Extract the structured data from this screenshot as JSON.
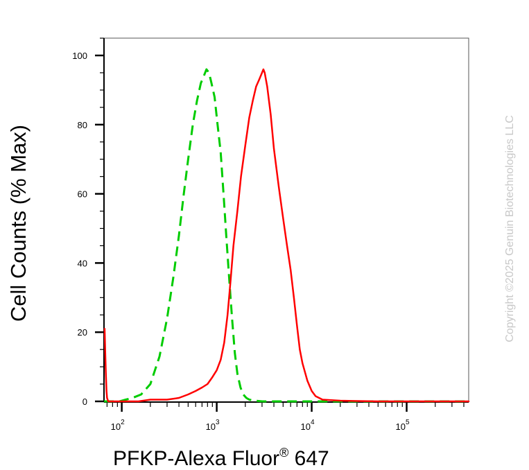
{
  "chart_data": {
    "type": "line",
    "title": "",
    "xlabel": "PFKP-Alexa Fluor",
    "xlabel_sup": "®",
    "xlabel_suffix": " 647",
    "ylabel": "Cell Counts (% Max)",
    "xscale": "log",
    "xlim": [
      65,
      450000
    ],
    "ylim": [
      0,
      105
    ],
    "y_ticks": [
      0,
      20,
      40,
      60,
      80,
      100
    ],
    "x_ticks": [
      {
        "value": 100,
        "base": "10",
        "exp": "2"
      },
      {
        "value": 1000,
        "base": "10",
        "exp": "3"
      },
      {
        "value": 10000,
        "base": "10",
        "exp": "4"
      },
      {
        "value": 100000,
        "base": "10",
        "exp": "5"
      }
    ],
    "grid": false,
    "series": [
      {
        "color": "#00cc00",
        "style": "dashed",
        "x": [
          65,
          75,
          95,
          110,
          130,
          160,
          200,
          250,
          300,
          350,
          400,
          450,
          500,
          560,
          620,
          680,
          730,
          780,
          830,
          880,
          950,
          1020,
          1100,
          1180,
          1260,
          1350,
          1450,
          1550,
          1650,
          1780,
          1900,
          2050,
          2200,
          2500,
          3000,
          5000,
          10000,
          50000,
          450000
        ],
        "y": [
          0,
          0,
          0,
          0.5,
          1,
          2,
          5,
          13,
          24,
          36,
          48,
          60,
          70,
          80,
          87,
          92,
          94,
          96,
          95,
          92,
          88,
          80,
          72,
          60,
          48,
          36,
          24,
          14,
          8,
          4,
          2,
          1,
          0.5,
          0.2,
          0,
          0,
          0,
          0,
          0
        ]
      },
      {
        "color": "#ff0000",
        "style": "solid",
        "x": [
          66,
          67,
          68,
          69,
          70,
          72,
          75,
          80,
          90,
          100,
          150,
          200,
          300,
          400,
          500,
          600,
          700,
          800,
          900,
          1000,
          1100,
          1200,
          1300,
          1400,
          1500,
          1650,
          1800,
          2000,
          2200,
          2400,
          2600,
          2800,
          3000,
          3100,
          3200,
          3400,
          3700,
          4000,
          4500,
          5000,
          5500,
          6000,
          6500,
          7000,
          7500,
          8000,
          9000,
          10000,
          11000,
          13000,
          20000,
          50000,
          450000
        ],
        "y": [
          21,
          14,
          8,
          3,
          1,
          0,
          0,
          0,
          0,
          0,
          0,
          0.5,
          0.5,
          1,
          2,
          3,
          4,
          5,
          7,
          9,
          12,
          17,
          25,
          35,
          45,
          55,
          65,
          74,
          82,
          87,
          91,
          93,
          95,
          96,
          95,
          91,
          83,
          73,
          62,
          53,
          45,
          38,
          30,
          22,
          15,
          11,
          6,
          3,
          1.5,
          0.5,
          0.2,
          0,
          0
        ]
      }
    ]
  },
  "watermark": "Copyright ©2025 Genuin Biotechnologies LLC"
}
